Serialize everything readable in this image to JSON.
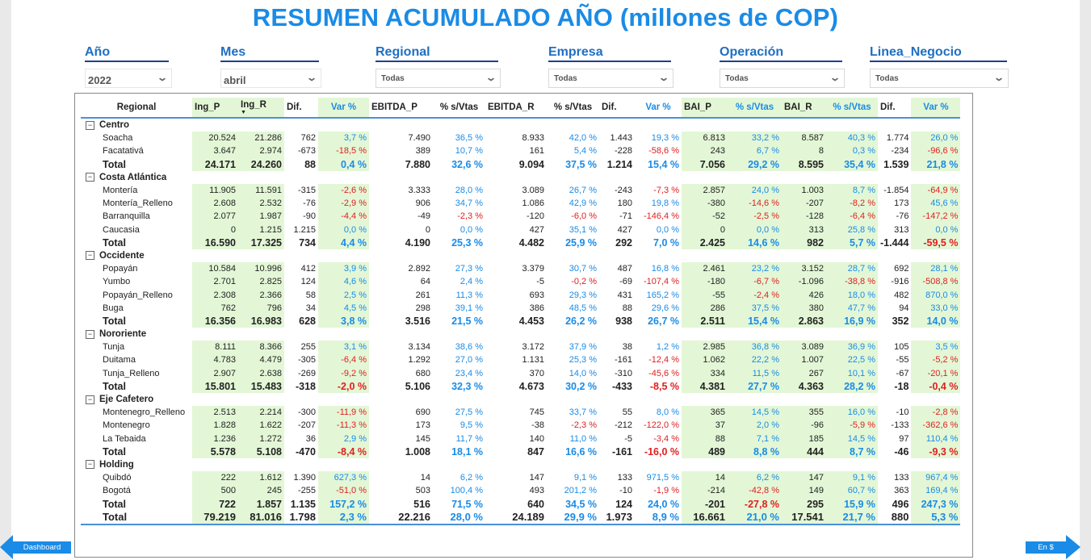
{
  "title": "RESUMEN ACUMULADO AÑO (millones de COP)",
  "slicers": [
    {
      "label": "Año",
      "value": "2022"
    },
    {
      "label": "Mes",
      "value": "abril"
    },
    {
      "label": "Regional",
      "value": "Todas"
    },
    {
      "label": "Empresa",
      "value": "Todas"
    },
    {
      "label": "Operación",
      "value": "Todas"
    },
    {
      "label": "Linea_Negocio",
      "value": "Todas"
    }
  ],
  "table": {
    "headers": [
      "Regional",
      "Ing_P",
      "Ing_R",
      "Dif.",
      "Var %",
      "EBITDA_P",
      "% s/Vtas",
      "EBITDA_R",
      "% s/Vtas",
      "Dif.",
      "Var %",
      "BAI_P",
      "% s/Vtas",
      "BAI_R",
      "% s/Vtas",
      "Dif.",
      "Var %"
    ],
    "rows": [
      {
        "type": "group",
        "name": "Centro"
      },
      {
        "type": "row",
        "name": "Soacha",
        "v": [
          "20.524",
          "21.286",
          "762",
          "3,7 %",
          "7.490",
          "36,5 %",
          "8.933",
          "42,0 %",
          "1.443",
          "19,3 %",
          "6.813",
          "33,2 %",
          "8.587",
          "40,3 %",
          "1.774",
          "26,0 %"
        ]
      },
      {
        "type": "row",
        "name": "Facatativá",
        "v": [
          "3.647",
          "2.974",
          "-673",
          "-18,5 %",
          "389",
          "10,7 %",
          "161",
          "5,4 %",
          "-228",
          "-58,6 %",
          "243",
          "6,7 %",
          "8",
          "0,3 %",
          "-234",
          "-96,6 %"
        ]
      },
      {
        "type": "total",
        "name": "Total",
        "v": [
          "24.171",
          "24.260",
          "88",
          "0,4 %",
          "7.880",
          "32,6 %",
          "9.094",
          "37,5 %",
          "1.214",
          "15,4 %",
          "7.056",
          "29,2 %",
          "8.595",
          "35,4 %",
          "1.539",
          "21,8 %"
        ]
      },
      {
        "type": "group",
        "name": "Costa Atlántica"
      },
      {
        "type": "row",
        "name": "Montería",
        "v": [
          "11.905",
          "11.591",
          "-315",
          "-2,6 %",
          "3.333",
          "28,0 %",
          "3.089",
          "26,7 %",
          "-243",
          "-7,3 %",
          "2.857",
          "24,0 %",
          "1.003",
          "8,7 %",
          "-1.854",
          "-64,9 %"
        ]
      },
      {
        "type": "row",
        "name": "Montería_Relleno",
        "v": [
          "2.608",
          "2.532",
          "-76",
          "-2,9 %",
          "906",
          "34,7 %",
          "1.086",
          "42,9 %",
          "180",
          "19,8 %",
          "-380",
          "-14,6 %",
          "-207",
          "-8,2 %",
          "173",
          "45,6 %"
        ]
      },
      {
        "type": "row",
        "name": "Barranquilla",
        "v": [
          "2.077",
          "1.987",
          "-90",
          "-4,4 %",
          "-49",
          "-2,3 %",
          "-120",
          "-6,0 %",
          "-71",
          "-146,4 %",
          "-52",
          "-2,5 %",
          "-128",
          "-6,4 %",
          "-76",
          "-147,2 %"
        ]
      },
      {
        "type": "row",
        "name": "Caucasia",
        "v": [
          "0",
          "1.215",
          "1.215",
          "0,0 %",
          "0",
          "0,0 %",
          "427",
          "35,1 %",
          "427",
          "0,0 %",
          "0",
          "0,0 %",
          "313",
          "25,8 %",
          "313",
          "0,0 %"
        ]
      },
      {
        "type": "total",
        "name": "Total",
        "v": [
          "16.590",
          "17.325",
          "734",
          "4,4 %",
          "4.190",
          "25,3 %",
          "4.482",
          "25,9 %",
          "292",
          "7,0 %",
          "2.425",
          "14,6 %",
          "982",
          "5,7 %",
          "-1.444",
          "-59,5 %"
        ]
      },
      {
        "type": "group",
        "name": "Occidente"
      },
      {
        "type": "row",
        "name": "Popayán",
        "v": [
          "10.584",
          "10.996",
          "412",
          "3,9 %",
          "2.892",
          "27,3 %",
          "3.379",
          "30,7 %",
          "487",
          "16,8 %",
          "2.461",
          "23,2 %",
          "3.152",
          "28,7 %",
          "692",
          "28,1 %"
        ]
      },
      {
        "type": "row",
        "name": "Yumbo",
        "v": [
          "2.701",
          "2.825",
          "124",
          "4,6 %",
          "64",
          "2,4 %",
          "-5",
          "-0,2 %",
          "-69",
          "-107,4 %",
          "-180",
          "-6,7 %",
          "-1.096",
          "-38,8 %",
          "-916",
          "-508,8 %"
        ]
      },
      {
        "type": "row",
        "name": "Popayán_Relleno",
        "v": [
          "2.308",
          "2.366",
          "58",
          "2,5 %",
          "261",
          "11,3 %",
          "693",
          "29,3 %",
          "431",
          "165,2 %",
          "-55",
          "-2,4 %",
          "426",
          "18,0 %",
          "482",
          "870,0 %"
        ]
      },
      {
        "type": "row",
        "name": "Buga",
        "v": [
          "762",
          "796",
          "34",
          "4,5 %",
          "298",
          "39,1 %",
          "386",
          "48,5 %",
          "88",
          "29,6 %",
          "286",
          "37,5 %",
          "380",
          "47,7 %",
          "94",
          "33,0 %"
        ]
      },
      {
        "type": "total",
        "name": "Total",
        "v": [
          "16.356",
          "16.983",
          "628",
          "3,8 %",
          "3.516",
          "21,5 %",
          "4.453",
          "26,2 %",
          "938",
          "26,7 %",
          "2.511",
          "15,4 %",
          "2.863",
          "16,9 %",
          "352",
          "14,0 %"
        ]
      },
      {
        "type": "group",
        "name": "Nororiente"
      },
      {
        "type": "row",
        "name": "Tunja",
        "v": [
          "8.111",
          "8.366",
          "255",
          "3,1 %",
          "3.134",
          "38,6 %",
          "3.172",
          "37,9 %",
          "38",
          "1,2 %",
          "2.985",
          "36,8 %",
          "3.089",
          "36,9 %",
          "105",
          "3,5 %"
        ]
      },
      {
        "type": "row",
        "name": "Duitama",
        "v": [
          "4.783",
          "4.479",
          "-305",
          "-6,4 %",
          "1.292",
          "27,0 %",
          "1.131",
          "25,3 %",
          "-161",
          "-12,4 %",
          "1.062",
          "22,2 %",
          "1.007",
          "22,5 %",
          "-55",
          "-5,2 %"
        ]
      },
      {
        "type": "row",
        "name": "Tunja_Relleno",
        "v": [
          "2.907",
          "2.638",
          "-269",
          "-9,2 %",
          "680",
          "23,4 %",
          "370",
          "14,0 %",
          "-310",
          "-45,6 %",
          "334",
          "11,5 %",
          "267",
          "10,1 %",
          "-67",
          "-20,1 %"
        ]
      },
      {
        "type": "total",
        "name": "Total",
        "v": [
          "15.801",
          "15.483",
          "-318",
          "-2,0 %",
          "5.106",
          "32,3 %",
          "4.673",
          "30,2 %",
          "-433",
          "-8,5 %",
          "4.381",
          "27,7 %",
          "4.363",
          "28,2 %",
          "-18",
          "-0,4 %"
        ]
      },
      {
        "type": "group",
        "name": "Eje Cafetero"
      },
      {
        "type": "row",
        "name": "Montenegro_Relleno",
        "v": [
          "2.513",
          "2.214",
          "-300",
          "-11,9 %",
          "690",
          "27,5 %",
          "745",
          "33,7 %",
          "55",
          "8,0 %",
          "365",
          "14,5 %",
          "355",
          "16,0 %",
          "-10",
          "-2,8 %"
        ]
      },
      {
        "type": "row",
        "name": "Montenegro",
        "v": [
          "1.828",
          "1.622",
          "-207",
          "-11,3 %",
          "173",
          "9,5 %",
          "-38",
          "-2,3 %",
          "-212",
          "-122,0 %",
          "37",
          "2,0 %",
          "-96",
          "-5,9 %",
          "-133",
          "-362,6 %"
        ]
      },
      {
        "type": "row",
        "name": "La Tebaida",
        "v": [
          "1.236",
          "1.272",
          "36",
          "2,9 %",
          "145",
          "11,7 %",
          "140",
          "11,0 %",
          "-5",
          "-3,4 %",
          "88",
          "7,1 %",
          "185",
          "14,5 %",
          "97",
          "110,4 %"
        ]
      },
      {
        "type": "total",
        "name": "Total",
        "v": [
          "5.578",
          "5.108",
          "-470",
          "-8,4 %",
          "1.008",
          "18,1 %",
          "847",
          "16,6 %",
          "-161",
          "-16,0 %",
          "489",
          "8,8 %",
          "444",
          "8,7 %",
          "-46",
          "-9,3 %"
        ]
      },
      {
        "type": "group",
        "name": "Holding"
      },
      {
        "type": "row",
        "name": "Quibdó",
        "v": [
          "222",
          "1.612",
          "1.390",
          "627,3 %",
          "14",
          "6,2 %",
          "147",
          "9,1 %",
          "133",
          "971,5 %",
          "14",
          "6,2 %",
          "147",
          "9,1 %",
          "133",
          "967,4 %"
        ]
      },
      {
        "type": "row",
        "name": "Bogotá",
        "v": [
          "500",
          "245",
          "-255",
          "-51,0 %",
          "503",
          "100,4 %",
          "493",
          "201,2 %",
          "-10",
          "-1,9 %",
          "-214",
          "-42,8 %",
          "149",
          "60,7 %",
          "363",
          "169,4 %"
        ]
      },
      {
        "type": "total",
        "name": "Total",
        "v": [
          "722",
          "1.857",
          "1.135",
          "157,2 %",
          "516",
          "71,5 %",
          "640",
          "34,5 %",
          "124",
          "24,0 %",
          "-201",
          "-27,8 %",
          "295",
          "15,9 %",
          "496",
          "247,3 %"
        ]
      },
      {
        "type": "grand",
        "name": "Total",
        "v": [
          "79.219",
          "81.016",
          "1.798",
          "2,3 %",
          "22.216",
          "28,0 %",
          "24.189",
          "29,9 %",
          "1.973",
          "8,9 %",
          "16.661",
          "21,0 %",
          "17.541",
          "21,7 %",
          "880",
          "5,3 %"
        ]
      }
    ]
  },
  "nav": {
    "back_label": "Dashboard",
    "forward_label": "En $"
  },
  "colors": {
    "accent": "#1a8be6",
    "positive": "#1a8be6",
    "negative": "#e02020",
    "green_cell": "#e3f7d6"
  }
}
